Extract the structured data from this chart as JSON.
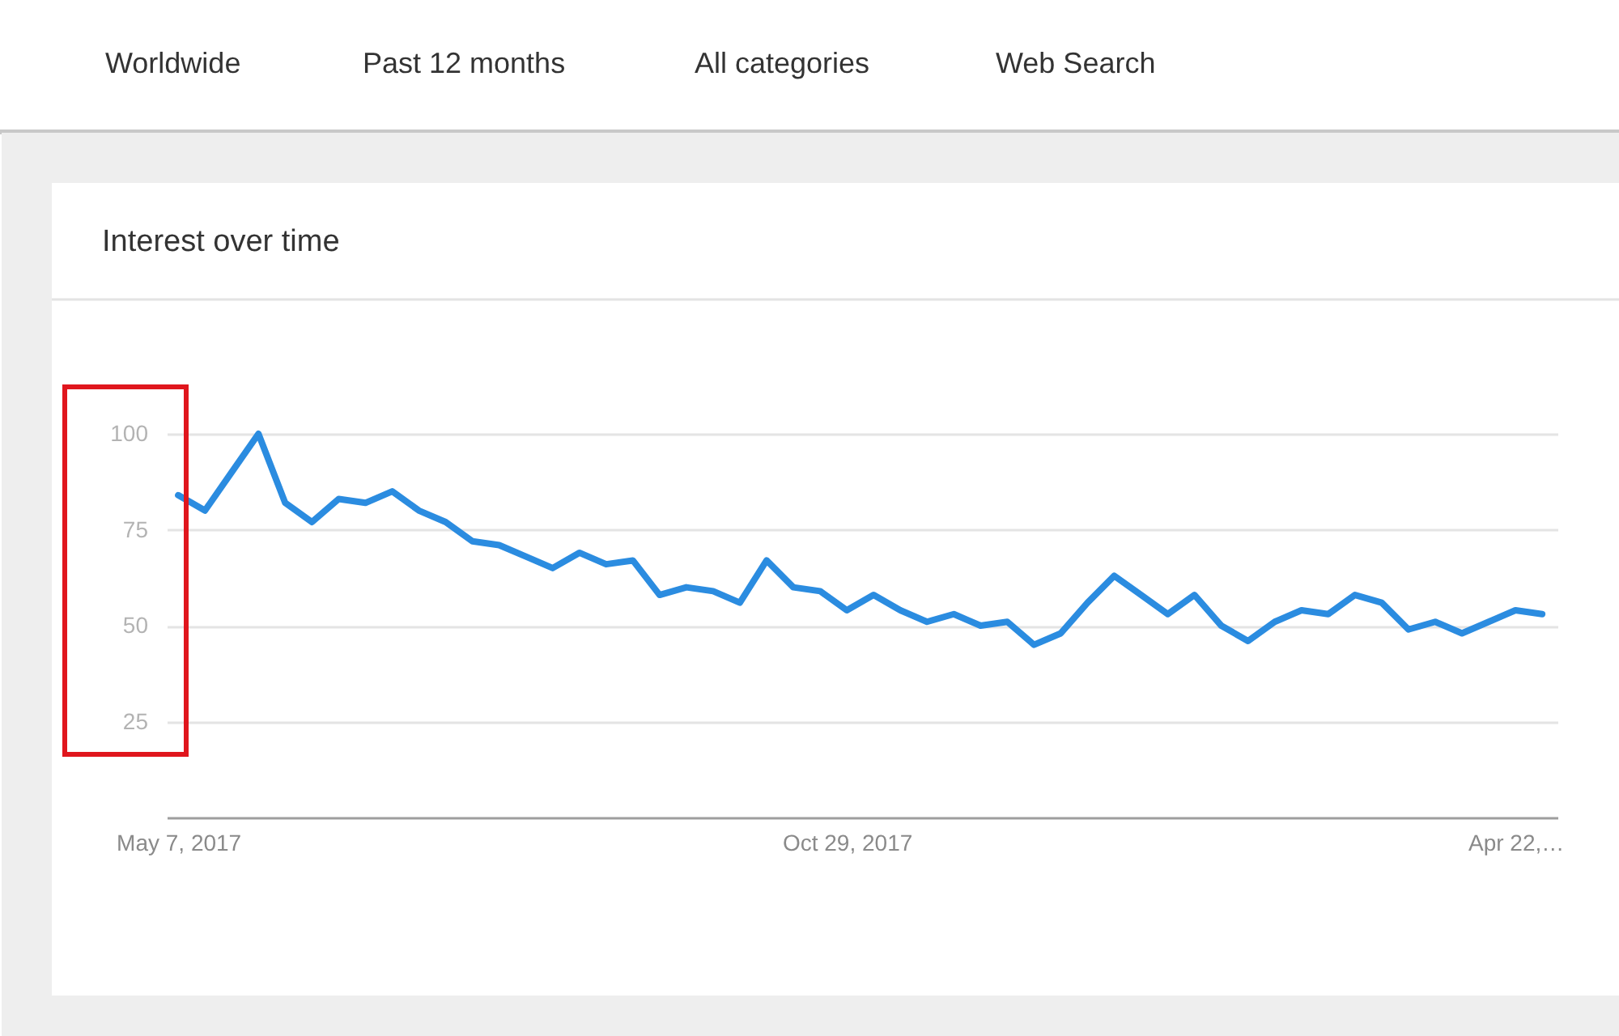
{
  "chart_data": {
    "type": "line",
    "title": "Interest over time",
    "annotations": [
      "Worldwide",
      "Past 12 months",
      "All categories",
      "Web Search"
    ],
    "x": [
      "2017-05-07",
      "2017-05-14",
      "2017-05-21",
      "2017-05-28",
      "2017-06-04",
      "2017-06-11",
      "2017-06-18",
      "2017-06-25",
      "2017-07-02",
      "2017-07-09",
      "2017-07-16",
      "2017-07-23",
      "2017-07-30",
      "2017-08-06",
      "2017-08-13",
      "2017-08-20",
      "2017-08-27",
      "2017-09-03",
      "2017-09-10",
      "2017-09-17",
      "2017-09-24",
      "2017-10-01",
      "2017-10-08",
      "2017-10-15",
      "2017-10-22",
      "2017-10-29",
      "2017-11-05",
      "2017-11-12",
      "2017-11-19",
      "2017-11-26",
      "2017-12-03",
      "2017-12-10",
      "2017-12-17",
      "2017-12-24",
      "2017-12-31",
      "2018-01-07",
      "2018-01-14",
      "2018-01-21",
      "2018-01-28",
      "2018-02-04",
      "2018-02-11",
      "2018-02-18",
      "2018-02-25",
      "2018-03-04",
      "2018-03-11",
      "2018-03-18",
      "2018-03-25",
      "2018-04-01",
      "2018-04-08",
      "2018-04-15",
      "2018-04-22",
      "2018-04-29"
    ],
    "series": [
      {
        "color": "#2b8ce0",
        "values": [
          84,
          80,
          90,
          100,
          82,
          77,
          83,
          82,
          85,
          80,
          77,
          72,
          71,
          68,
          65,
          69,
          66,
          67,
          58,
          60,
          59,
          56,
          67,
          60,
          59,
          54,
          58,
          54,
          51,
          53,
          50,
          51,
          45,
          48,
          56,
          63,
          58,
          53,
          58,
          50,
          46,
          51,
          54,
          53,
          58,
          56,
          49,
          51,
          48,
          51,
          54,
          53
        ]
      }
    ],
    "xlim": [
      "2017-05-04",
      "2018-05-03"
    ],
    "xticks": [
      {
        "value": "2017-05-07",
        "label": "May 7, 2017"
      },
      {
        "value": "2017-10-29",
        "label": "Oct 29, 2017"
      },
      {
        "value": "2018-04-22",
        "label": "Apr 22,…"
      }
    ],
    "ylim": [
      0,
      100
    ],
    "yticks": [
      25,
      50,
      75,
      100
    ],
    "grid": "y",
    "line_style": "solid"
  }
}
